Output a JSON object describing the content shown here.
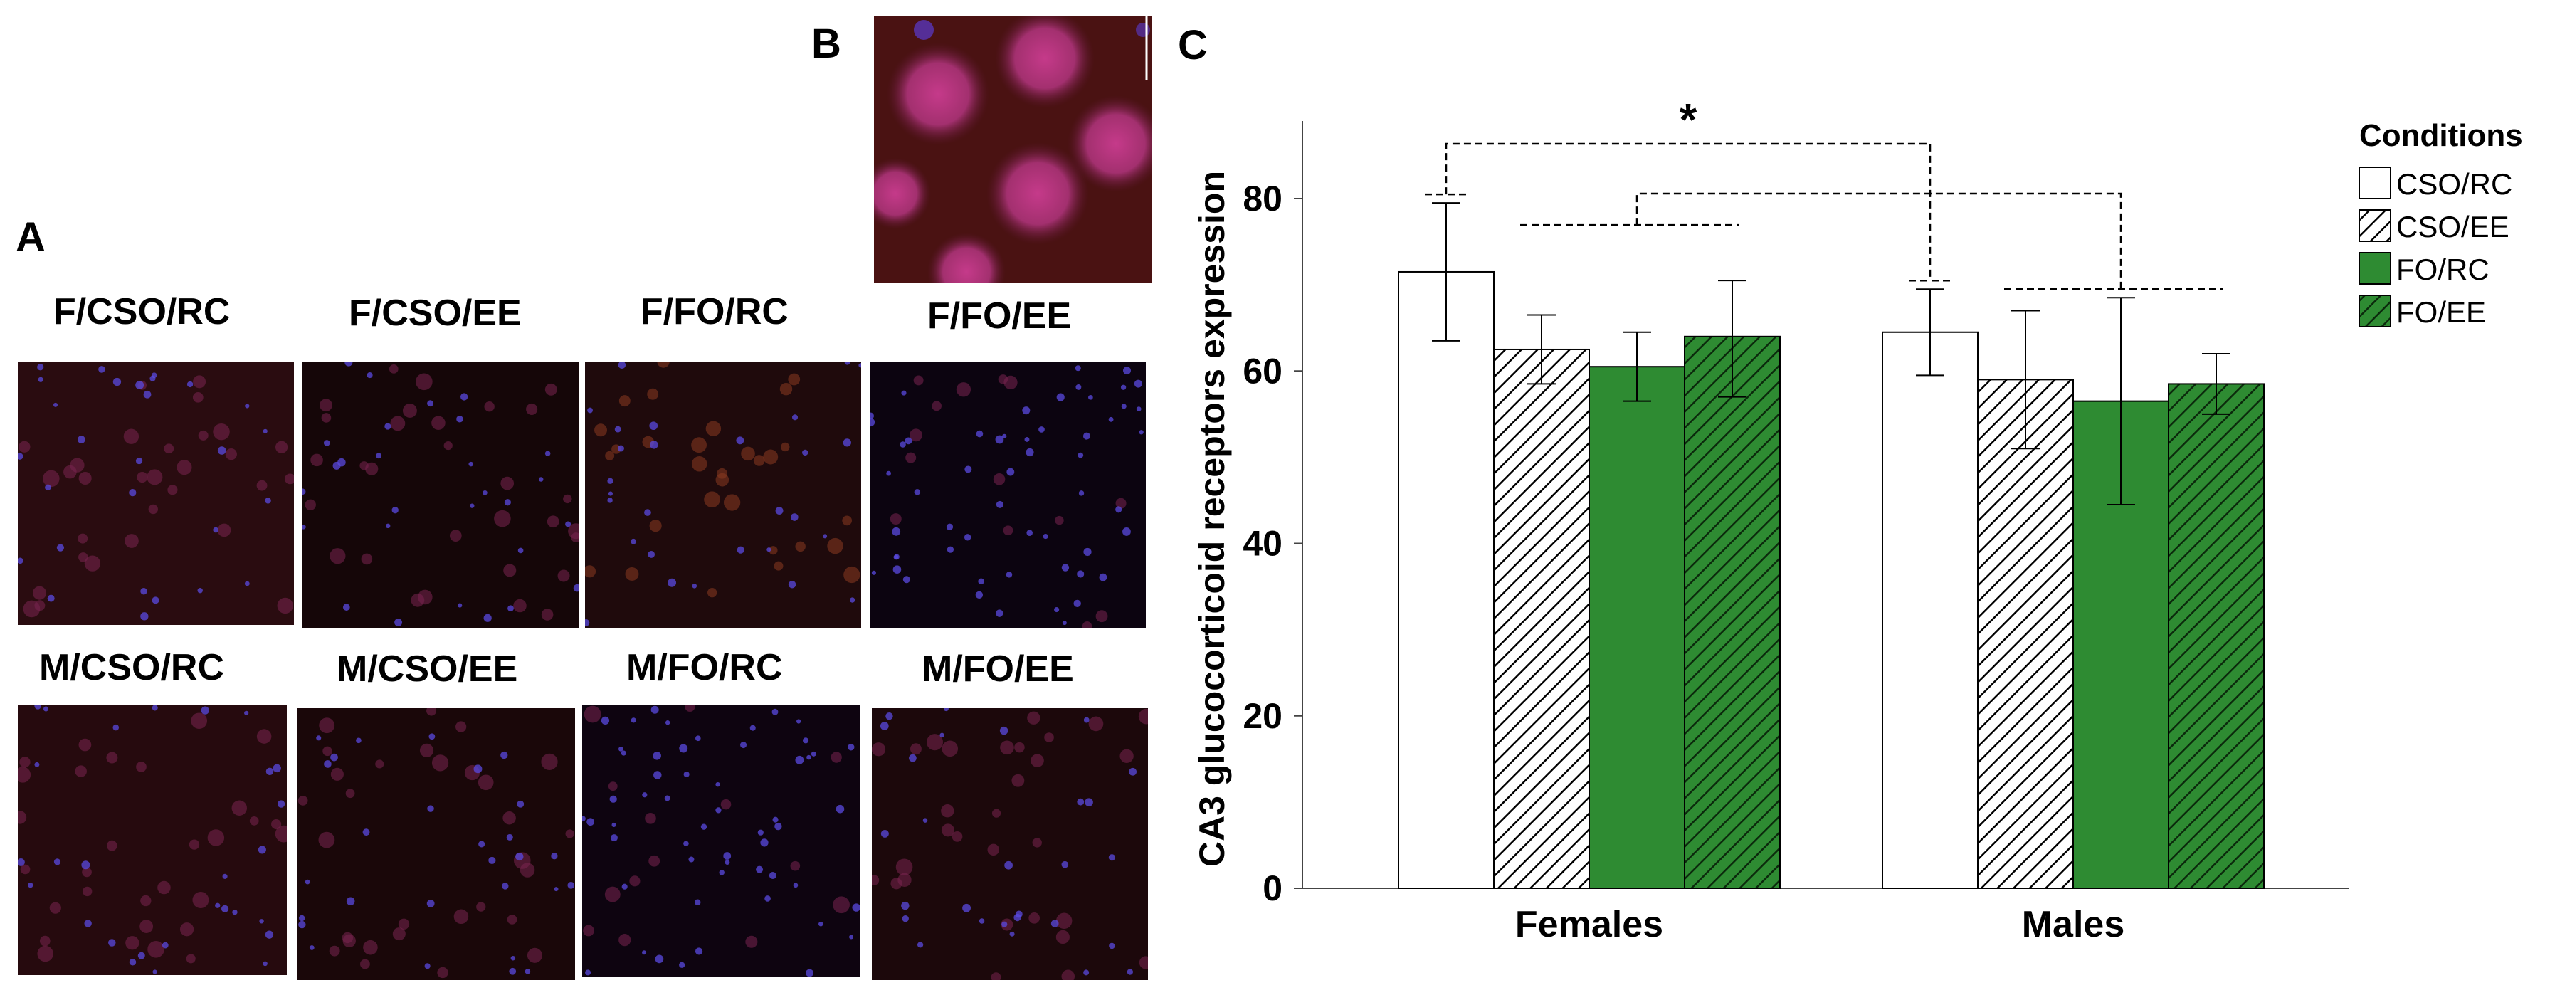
{
  "panels": {
    "a_letter": "A",
    "b_letter": "B",
    "c_letter": "C"
  },
  "micrographs": [
    {
      "label": "F/CSO/RC",
      "bg": "#2a0c10",
      "tone": "red"
    },
    {
      "label": "F/CSO/EE",
      "bg": "#150608",
      "tone": "dark"
    },
    {
      "label": "F/FO/RC",
      "bg": "#1f0a0c",
      "tone": "orange"
    },
    {
      "label": "F/FO/EE",
      "bg": "#0c0410",
      "tone": "blue"
    },
    {
      "label": "M/CSO/RC",
      "bg": "#260a0e",
      "tone": "red"
    },
    {
      "label": "M/CSO/EE",
      "bg": "#1a0709",
      "tone": "red"
    },
    {
      "label": "M/FO/RC",
      "bg": "#0e0410",
      "tone": "blue"
    },
    {
      "label": "M/FO/EE",
      "bg": "#1c080b",
      "tone": "red"
    }
  ],
  "inset": {
    "bg": "#4a1212"
  },
  "colors": {
    "green": "#2e8b32",
    "white": "#ffffff",
    "stroke": "#000000"
  },
  "chart_data": {
    "type": "bar",
    "title": "",
    "xlabel": "",
    "ylabel": "CA3 glucocorticoid receptors expression",
    "ylim": [
      0,
      89
    ],
    "yticks": [
      "0",
      "20",
      "40",
      "60",
      "80"
    ],
    "categories": [
      "Females",
      "Males"
    ],
    "legend": {
      "title": "Conditions",
      "placement": "right"
    },
    "series": [
      {
        "name": "CSO/RC",
        "fill": "white",
        "values": [
          71.5,
          64.5
        ],
        "err_low": [
          63.5,
          59.5
        ],
        "err_high": [
          79.5,
          69.5
        ]
      },
      {
        "name": "CSO/EE",
        "fill": "hatch-white",
        "values": [
          62.5,
          59.0
        ],
        "err_low": [
          58.5,
          51.0
        ],
        "err_high": [
          66.5,
          67.0
        ]
      },
      {
        "name": "FO/RC",
        "fill": "green",
        "values": [
          60.5,
          56.5
        ],
        "err_low": [
          56.5,
          44.5
        ],
        "err_high": [
          64.5,
          68.5
        ]
      },
      {
        "name": "FO/EE",
        "fill": "hatch-green",
        "values": [
          64.0,
          58.5
        ],
        "err_low": [
          57.0,
          55.0
        ],
        "err_high": [
          70.5,
          62.0
        ]
      }
    ],
    "significance": [
      {
        "label": "*",
        "from": "Females",
        "to": "Males",
        "groups": "CSO/RC"
      },
      {
        "label": "",
        "from": "Females",
        "to": "Males",
        "groups": "CSO/EE, FO/RC, FO/EE"
      }
    ]
  }
}
